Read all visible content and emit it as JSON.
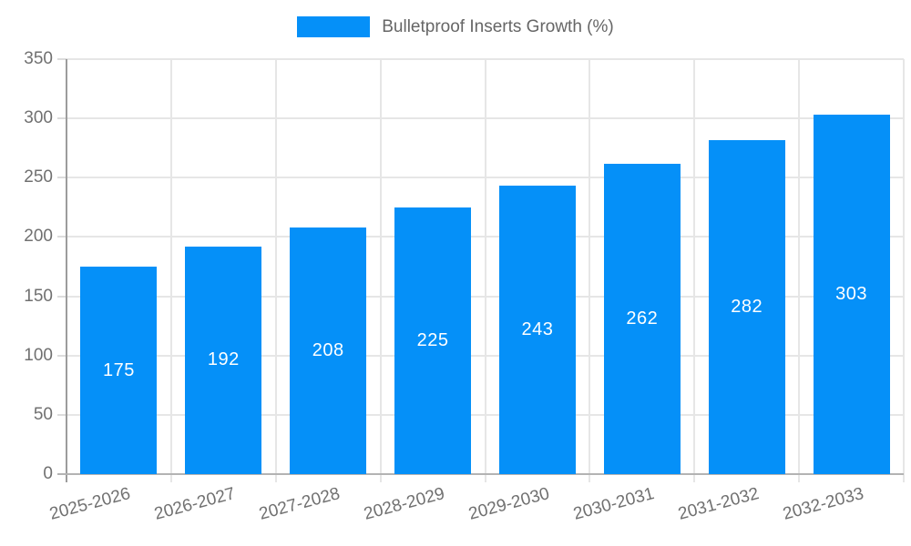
{
  "chart_data": {
    "type": "bar",
    "title": "",
    "legend": "Bulletproof Inserts Growth (%)",
    "legend_position": "top",
    "categories": [
      "2025-2026",
      "2026-2027",
      "2027-2028",
      "2028-2029",
      "2029-2030",
      "2030-2031",
      "2031-2032",
      "2032-2033"
    ],
    "values": [
      175,
      192,
      208,
      225,
      243,
      262,
      282,
      303
    ],
    "xlabel": "",
    "ylabel": "",
    "ylim": [
      0,
      350
    ],
    "yticks": [
      0,
      50,
      100,
      150,
      200,
      250,
      300,
      350
    ],
    "grid": true,
    "x_label_rotation_deg": -15,
    "colors": {
      "bar": "#0590f8",
      "value_label": "#ffffff",
      "legend_text": "#666666",
      "axis_text": "#707070",
      "gridline": "#e6e6e6"
    }
  }
}
